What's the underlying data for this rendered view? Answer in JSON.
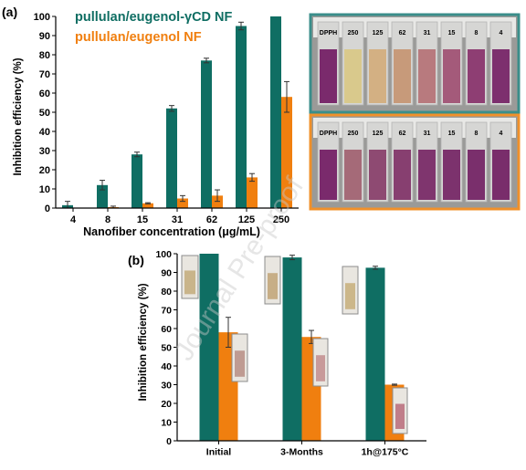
{
  "colors": {
    "teal": "#0f6e63",
    "orange": "#f07f0f",
    "panel_teal_border": "#3a8e8a",
    "panel_orange_border": "#f0902a",
    "watermark": "#c8c8c8"
  },
  "watermark": "Journal Pre-proof",
  "chart_data": [
    {
      "type": "bar",
      "panel_label": "(a)",
      "xlabel": "Nanofiber concentration (μg/mL)",
      "ylabel": "Inhibition efficiency (%)",
      "categories": [
        "4",
        "8",
        "15",
        "31",
        "62",
        "125",
        "250"
      ],
      "ylim": [
        0,
        100
      ],
      "yticks": [
        0,
        10,
        20,
        30,
        40,
        50,
        60,
        70,
        80,
        90,
        100
      ],
      "legend_placement": "top-left",
      "series": [
        {
          "name": "pullulan/eugenol-γCD NF",
          "color": "#0f6e63",
          "values": [
            1.5,
            12,
            28,
            52,
            77,
            95,
            100
          ],
          "errors": [
            2,
            2.5,
            1.2,
            1.5,
            1.2,
            2,
            0
          ]
        },
        {
          "name": "pullulan/eugenol NF",
          "color": "#f07f0f",
          "values": [
            0,
            0.5,
            2.5,
            5,
            6.5,
            16,
            58
          ],
          "errors": [
            0,
            0.5,
            0.3,
            1.5,
            3,
            2,
            8
          ]
        }
      ]
    },
    {
      "type": "bar",
      "panel_label": "(b)",
      "xlabel": "",
      "ylabel": "Inhibition efficiency (%)",
      "categories": [
        "Initial",
        "3-Months",
        "1h@175°C"
      ],
      "ylim": [
        0,
        100
      ],
      "yticks": [
        0,
        10,
        20,
        30,
        40,
        50,
        60,
        70,
        80,
        90,
        100
      ],
      "series": [
        {
          "color": "#0f6e63",
          "values": [
            100,
            98,
            92.5
          ],
          "errors": [
            0,
            1.2,
            0.8
          ]
        },
        {
          "color": "#f07f0f",
          "values": [
            58,
            55.5,
            30
          ],
          "errors": [
            8,
            3.5,
            0.3
          ]
        }
      ]
    }
  ],
  "photo_panels": [
    {
      "border": "#3a8e8a",
      "labels": [
        "DPPH",
        "250",
        "125",
        "62",
        "31",
        "15",
        "8",
        "4"
      ],
      "colors": [
        "#7a2a6c",
        "#d9c98c",
        "#d3b083",
        "#c79a7a",
        "#b87a7e",
        "#a45a7a",
        "#8e3e73",
        "#7d2f6e"
      ]
    },
    {
      "border": "#f0902a",
      "labels": [
        "DPPH",
        "250",
        "125",
        "62",
        "31",
        "15",
        "8",
        "4"
      ],
      "colors": [
        "#7a2a6c",
        "#a56a78",
        "#8e4a72",
        "#873f70",
        "#7f356e",
        "#7c326d",
        "#7a2f6c",
        "#792d6b"
      ]
    }
  ]
}
